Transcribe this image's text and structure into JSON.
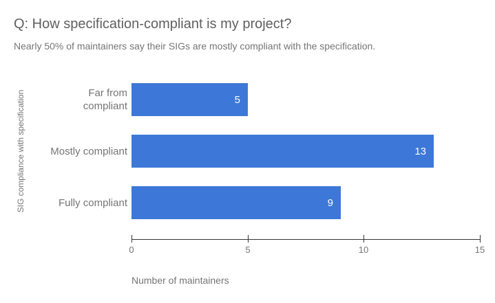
{
  "header": {
    "title": "Q: How specification-compliant is my project?",
    "subtitle": "Nearly 50% of maintainers say their SIGs are mostly compliant with the specification."
  },
  "colors": {
    "background": "#ffffff",
    "bar": "#3d78d8",
    "bar_value_text": "#ffffff",
    "title_text": "#5f5f5f",
    "secondary_text": "#757575",
    "axis_line": "#333333"
  },
  "chart_data": {
    "type": "bar",
    "orientation": "horizontal",
    "title": "Q: How specification-compliant is my project?",
    "subtitle": "Nearly 50% of maintainers say their SIGs are mostly compliant with the specification.",
    "categories": [
      "Far from compliant",
      "Mostly compliant",
      "Fully compliant"
    ],
    "values": [
      5,
      13,
      9
    ],
    "xlabel": "Number of maintainers",
    "ylabel": "SIG compliance with specification",
    "xlim": [
      0,
      15
    ],
    "x_ticks": [
      0,
      5,
      10,
      15
    ],
    "grid": false,
    "legend": "none",
    "value_labels": "inside-end"
  }
}
